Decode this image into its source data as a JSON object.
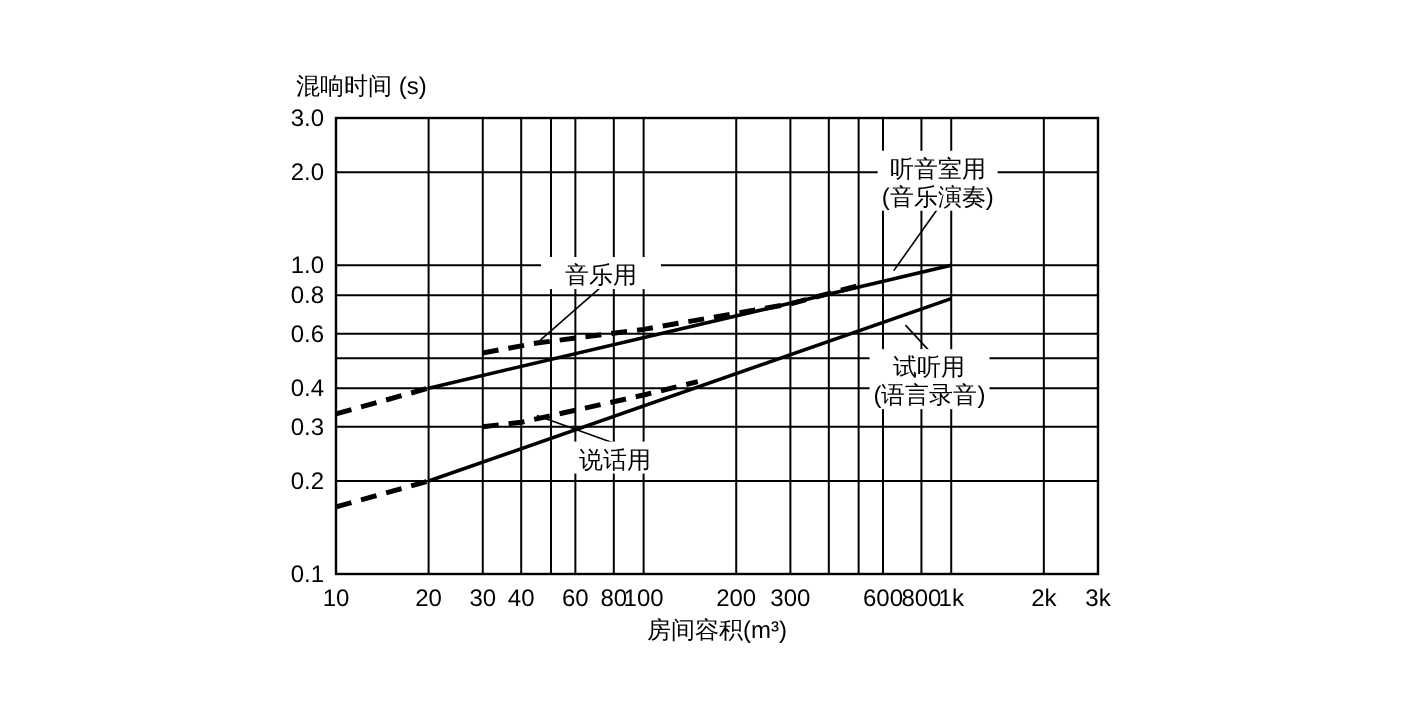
{
  "chart_data": {
    "type": "line",
    "xlabel": "房间容积(m³)",
    "ylabel": "混响时间 (s)",
    "log": "xy",
    "grid": true,
    "xlim": [
      10,
      3000
    ],
    "ylim": [
      0.1,
      3.0
    ],
    "xticks": [
      10,
      20,
      30,
      40,
      {
        "value": 50,
        "label": null
      },
      60,
      80,
      100,
      200,
      300,
      {
        "value": 400,
        "label": null
      },
      {
        "value": 500,
        "label": null
      },
      600,
      800,
      {
        "value": 1000,
        "label": "1k"
      },
      {
        "value": 2000,
        "label": "2k"
      },
      {
        "value": 3000,
        "label": "3k"
      }
    ],
    "yticks": [
      0.1,
      0.2,
      0.3,
      0.4,
      {
        "value": 0.5,
        "label": null
      },
      0.6,
      0.8,
      {
        "value": 1,
        "label": "1.0"
      },
      {
        "value": 2,
        "label": "2.0"
      },
      {
        "value": 3,
        "label": "3.0"
      }
    ],
    "series": [
      {
        "color": "#000000",
        "line_style": "solid",
        "x": [
          20,
          1000
        ],
        "values": [
          0.4,
          1.0
        ]
      },
      {
        "color": "#000000",
        "line_style": "dashed",
        "x": [
          10,
          20
        ],
        "values": [
          0.33,
          0.4
        ]
      },
      {
        "color": "#000000",
        "line_style": "dashed",
        "x": [
          30,
          45,
          100,
          300,
          500
        ],
        "values": [
          0.52,
          0.56,
          0.62,
          0.75,
          0.86
        ]
      },
      {
        "color": "#000000",
        "line_style": "solid",
        "x": [
          20,
          1000
        ],
        "values": [
          0.2,
          0.78
        ]
      },
      {
        "color": "#000000",
        "line_style": "dashed",
        "x": [
          10,
          20
        ],
        "values": [
          0.165,
          0.2
        ]
      },
      {
        "color": "#000000",
        "line_style": "dashed",
        "x": [
          30,
          40,
          100,
          150
        ],
        "values": [
          0.3,
          0.31,
          0.38,
          0.42
        ]
      }
    ],
    "annotations": [
      {
        "text": "音乐用",
        "x": 45,
        "y": 0.56
      },
      {
        "text": "听音室用(音乐演奏)",
        "x": 650,
        "y": 0.96
      },
      {
        "text": "试听用(语言录音)",
        "x": 710,
        "y": 0.64
      },
      {
        "text": "说话用",
        "x": 45,
        "y": 0.326
      }
    ]
  }
}
